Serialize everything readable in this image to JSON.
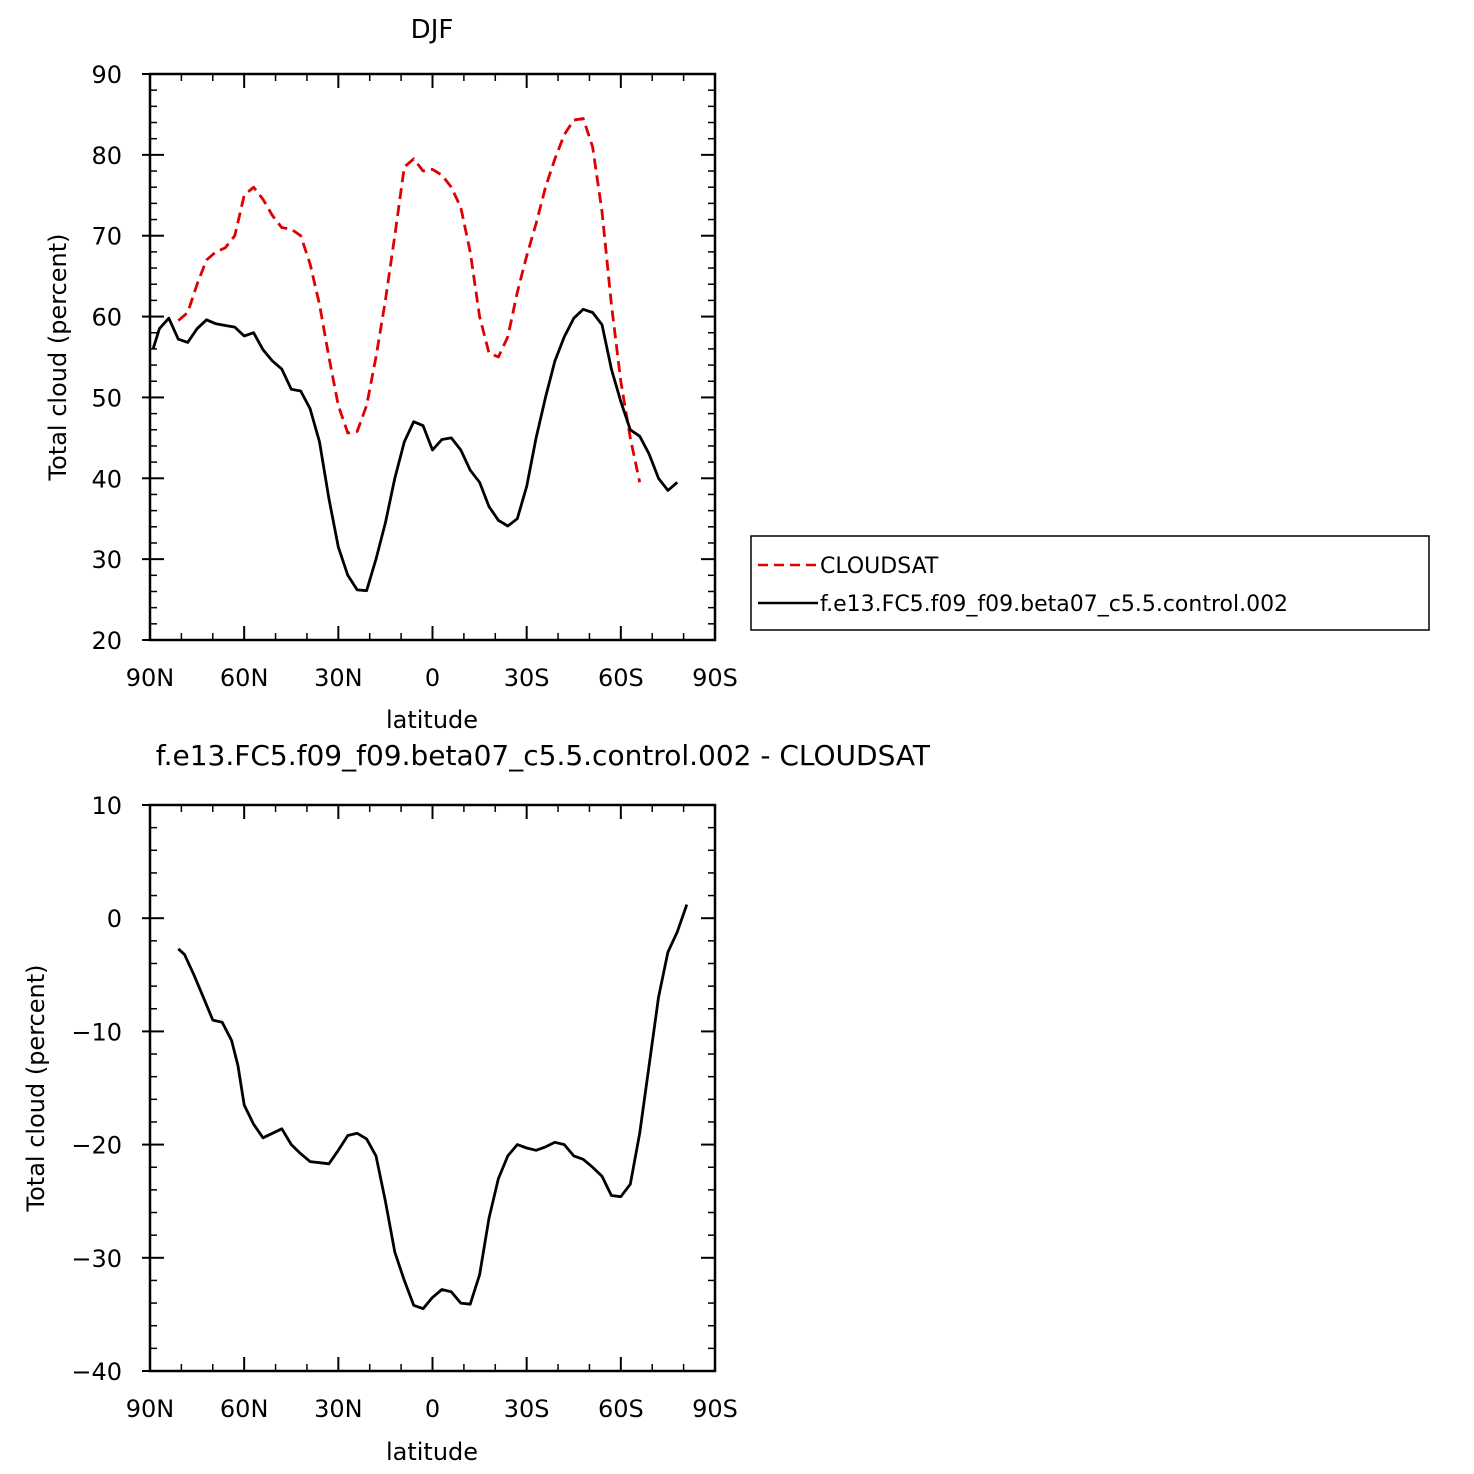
{
  "chart_data": [
    {
      "type": "line",
      "title": "DJF",
      "xlabel": "latitude",
      "ylabel": "Total cloud (percent)",
      "xlim": [
        90,
        -90
      ],
      "ylim": [
        20,
        90
      ],
      "xticks": [
        {
          "value": 90,
          "label": "90N"
        },
        {
          "value": 60,
          "label": "60N"
        },
        {
          "value": 30,
          "label": "30N"
        },
        {
          "value": 0,
          "label": "0"
        },
        {
          "value": -30,
          "label": "30S"
        },
        {
          "value": -60,
          "label": "60S"
        },
        {
          "value": -90,
          "label": "90S"
        }
      ],
      "yticks": [
        {
          "value": 90,
          "label": "90"
        },
        {
          "value": 80,
          "label": "80"
        },
        {
          "value": 70,
          "label": "70"
        },
        {
          "value": 60,
          "label": "60"
        },
        {
          "value": 50,
          "label": "50"
        },
        {
          "value": 40,
          "label": "40"
        },
        {
          "value": 30,
          "label": "30"
        },
        {
          "value": 20,
          "label": "20"
        }
      ],
      "legend": "right",
      "series": [
        {
          "name": "CLOUDSAT",
          "color": "#e00000",
          "dash": "dashed",
          "x": [
            81,
            78,
            75,
            72,
            69,
            66,
            63,
            60,
            57,
            54,
            51,
            48,
            45,
            42,
            39,
            36,
            33,
            30,
            27,
            24,
            21,
            18,
            15,
            12,
            9,
            6,
            3,
            0,
            -3,
            -6,
            -9,
            -12,
            -15,
            -18,
            -21,
            -24,
            -27,
            -30,
            -33,
            -36,
            -39,
            -42,
            -45,
            -48,
            -51,
            -54,
            -57,
            -60,
            -63,
            -66,
            -69,
            -72,
            -75,
            -78,
            -81
          ],
          "y": [
            59.5,
            60.5,
            64,
            67,
            68,
            68.5,
            70,
            75,
            76,
            74.5,
            72.5,
            71,
            70.8,
            70,
            66.5,
            61.5,
            55,
            49,
            45.6,
            45.8,
            49,
            55,
            62,
            70,
            78.5,
            79.5,
            78,
            78.2,
            77.5,
            76,
            73.5,
            68,
            60,
            55.5,
            55,
            57.5,
            63,
            67.5,
            71.5,
            76,
            79.5,
            82.5,
            84.3,
            84.5,
            81,
            73,
            61.5,
            52,
            45,
            39.5,
            null,
            null,
            null,
            null,
            null
          ]
        },
        {
          "name": "f.e13.FC5.f09_f09.beta07_c5.5.control.002",
          "color": "#000000",
          "dash": "solid",
          "x": [
            89,
            87,
            84,
            81,
            78,
            75,
            72,
            69,
            66,
            63,
            60,
            57,
            54,
            51,
            48,
            45,
            42,
            39,
            36,
            33,
            30,
            27,
            24,
            21,
            18,
            15,
            12,
            9,
            6,
            3,
            0,
            -3,
            -6,
            -9,
            -12,
            -15,
            -18,
            -21,
            -24,
            -27,
            -30,
            -33,
            -36,
            -39,
            -42,
            -45,
            -48,
            -51,
            -54,
            -57,
            -60,
            -63,
            -66,
            -69,
            -72,
            -75,
            -78,
            -81,
            -84,
            -86,
            -89
          ],
          "y": [
            56,
            58.5,
            59.8,
            57.2,
            56.8,
            58.5,
            59.6,
            59.1,
            58.9,
            58.7,
            57.6,
            58,
            55.9,
            54.5,
            53.5,
            51,
            50.8,
            48.6,
            44.5,
            37.5,
            31.5,
            28,
            26.2,
            26.1,
            30,
            34.5,
            40,
            44.5,
            47,
            46.5,
            43.5,
            44.8,
            45,
            43.5,
            41,
            39.5,
            36.5,
            34.8,
            34.1,
            35,
            39,
            45,
            50,
            54.5,
            57.5,
            59.8,
            60.9,
            60.5,
            59,
            53.5,
            49.5,
            46,
            45.2,
            43,
            40,
            38.5,
            39.5,
            null,
            null,
            null,
            null
          ]
        }
      ]
    },
    {
      "type": "line",
      "title": "f.e13.FC5.f09_f09.beta07_c5.5.control.002 - CLOUDSAT",
      "xlabel": "latitude",
      "ylabel": "Total cloud (percent)",
      "xlim": [
        90,
        -90
      ],
      "ylim": [
        -40,
        10
      ],
      "xticks": [
        {
          "value": 90,
          "label": "90N"
        },
        {
          "value": 60,
          "label": "60N"
        },
        {
          "value": 30,
          "label": "30N"
        },
        {
          "value": 0,
          "label": "0"
        },
        {
          "value": -30,
          "label": "30S"
        },
        {
          "value": -60,
          "label": "60S"
        },
        {
          "value": -90,
          "label": "90S"
        }
      ],
      "yticks": [
        {
          "value": 10,
          "label": "10"
        },
        {
          "value": 0,
          "label": "0"
        },
        {
          "value": -10,
          "label": "−10"
        },
        {
          "value": -20,
          "label": "−20"
        },
        {
          "value": -30,
          "label": "−30"
        },
        {
          "value": -40,
          "label": "−40"
        }
      ],
      "series": [
        {
          "color": "#000000",
          "dash": "solid",
          "x": [
            81,
            79,
            76,
            73,
            70,
            67,
            64,
            62,
            60,
            57,
            54,
            51,
            48,
            45,
            42,
            39,
            36,
            33,
            30,
            27,
            24,
            21,
            18,
            15,
            12,
            9,
            6,
            3,
            0,
            -3,
            -6,
            -9,
            -12,
            -15,
            -18,
            -21,
            -24,
            -27,
            -30,
            -33,
            -36,
            -39,
            -42,
            -45,
            -48,
            -51,
            -54,
            -57,
            -60,
            -63,
            -66,
            -69,
            -72,
            -75,
            -78,
            -81
          ],
          "y": [
            -2.7,
            -3.2,
            -5,
            -7,
            -9,
            -9.2,
            -10.8,
            -13,
            -16.5,
            -18.2,
            -19.4,
            -19,
            -18.6,
            -20,
            -20.8,
            -21.5,
            -21.6,
            -21.7,
            -20.5,
            -19.2,
            -19,
            -19.5,
            -21,
            -25,
            -29.5,
            -32,
            -34.2,
            -34.5,
            -33.5,
            -32.8,
            -33,
            -34,
            -34.1,
            -31.5,
            -26.5,
            -23,
            -21,
            -20,
            -20.3,
            -20.5,
            -20.2,
            -19.8,
            -20,
            -21,
            -21.3,
            -22,
            -22.8,
            -24.5,
            -24.6,
            -23.5,
            -19,
            -13,
            -7,
            -3,
            -1.2,
            1.2
          ]
        }
      ]
    }
  ]
}
